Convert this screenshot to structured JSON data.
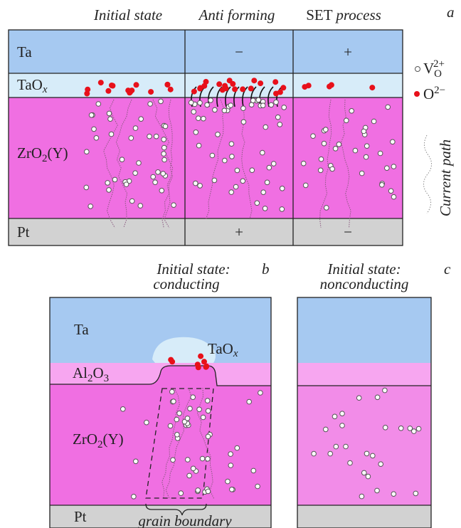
{
  "panel_a": {
    "letter": "a",
    "headers": [
      "Initial state",
      "Anti forming",
      {
        "plain": "SET",
        "italic": "process"
      }
    ],
    "layers": {
      "ta": "Ta",
      "taox": {
        "base": "TaO",
        "sub": "x"
      },
      "zro2": {
        "base": "ZrO",
        "sub": "2",
        "tail": "(Y)"
      },
      "pt": "Pt"
    },
    "top_signs": [
      "−",
      "+"
    ],
    "bottom_signs": [
      "+",
      "−"
    ],
    "legend": {
      "vacancy": {
        "base": "V",
        "sub": "O",
        "sup": "2+"
      },
      "oxygen": {
        "base": "O",
        "sup": "2−"
      },
      "current_path": "Current path"
    }
  },
  "panel_b": {
    "letter": "b",
    "title": "Initial state",
    "colon": ":",
    "subtitle": "conducting",
    "layers": {
      "ta": "Ta",
      "taox": {
        "base": "TaO",
        "sub": "x"
      },
      "al2o3": {
        "base": "Al",
        "sub": "2",
        "mid": "O",
        "sub2": "3"
      },
      "zro2": {
        "base": "ZrO",
        "sub": "2",
        "tail": "(Y)"
      },
      "pt": "Pt"
    },
    "grain_boundary": "grain boundary"
  },
  "panel_c": {
    "letter": "c",
    "title": "Initial state",
    "colon": ":",
    "subtitle": "nonconducting"
  }
}
